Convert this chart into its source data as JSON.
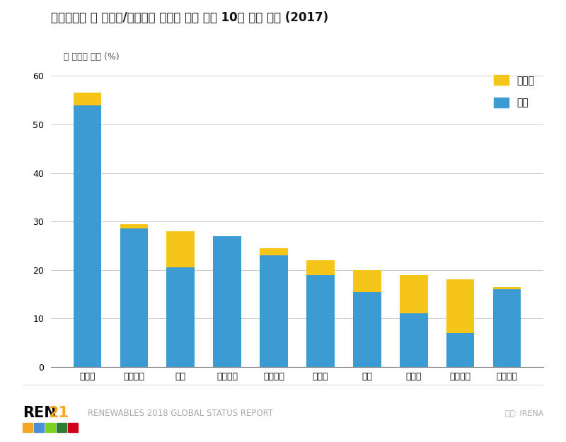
{
  "title": "국가발전량 중 태양광/풍력발전 비중이 가장 높은 10개 국가 순위 (2017)",
  "ylabel": "총 발전량 비중 (%)",
  "categories": [
    "덴마크",
    "우루과이",
    "독일",
    "아일랜드",
    "포르투갈",
    "스페인",
    "영국",
    "그리스",
    "혼두라스",
    "니카라과"
  ],
  "wind": [
    54.0,
    28.5,
    20.5,
    27.0,
    23.0,
    19.0,
    15.5,
    11.0,
    7.0,
    16.0
  ],
  "solar": [
    2.5,
    1.0,
    7.5,
    0.0,
    1.5,
    3.0,
    4.5,
    8.0,
    11.0,
    0.5
  ],
  "wind_color": "#3D9BD4",
  "solar_color": "#F5C518",
  "ylim": [
    0,
    62
  ],
  "yticks": [
    0,
    10,
    20,
    30,
    40,
    50,
    60
  ],
  "legend_solar": "태양광",
  "legend_wind": "풍력",
  "source_text": "출처: IRENA",
  "footer_text": "RENEWABLES 2018 GLOBAL STATUS REPORT",
  "ren21_text": "REN",
  "ren21_bold": "21",
  "background_color": "#FFFFFF",
  "grid_color": "#CCCCCC",
  "title_fontsize": 12,
  "axis_label_fontsize": 9,
  "tick_fontsize": 9,
  "legend_fontsize": 10,
  "icon_colors": [
    "#F5A623",
    "#4A90D9",
    "#7ED321",
    "#2E7D32",
    "#D0021B"
  ]
}
